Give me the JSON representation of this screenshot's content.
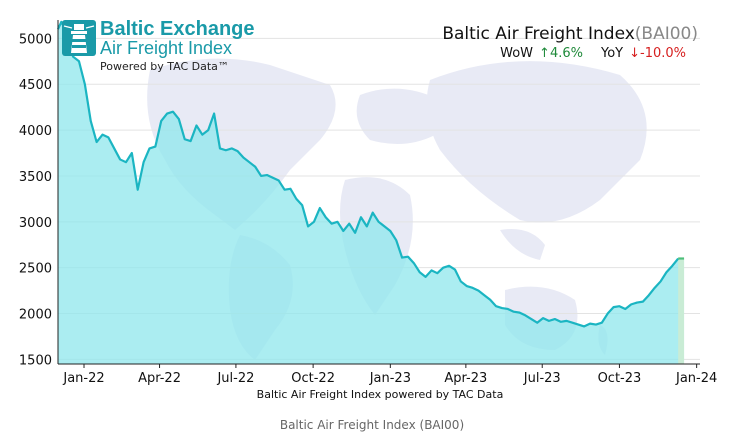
{
  "logo": {
    "title": "Baltic Exchange",
    "subtitle": "Air Freight Index",
    "powered": "Powered by TAC Data™"
  },
  "header": {
    "title": "Baltic Air Freight Index",
    "code": "(BAI00)",
    "wow_label": "WoW",
    "wow_arrow": "↑",
    "wow_value": "4.6%",
    "yoy_label": "YoY",
    "yoy_arrow": "↓",
    "yoy_value": "-10.0%"
  },
  "caption": "Baltic Air Freight Index (BAI00)",
  "colors": {
    "line": "#1bb5c2",
    "fill": "#8fe7ec",
    "last_fill": "#c9ecd5",
    "last_line": "#4fbf7a",
    "up": "#1f8a3a",
    "down": "#d61f1f",
    "logo": "#1a9aa8",
    "grid": "#e3e3e3",
    "map": "#e6e8f4"
  },
  "chart_data": {
    "type": "area",
    "title": "Baltic Air Freight Index(BAI00)",
    "xlabel": "Baltic Air Freight Index powered by TAC Data",
    "ylabel": "",
    "x_ticks": [
      "Jan-22",
      "Apr-22",
      "Jul-22",
      "Oct-22",
      "Jan-23",
      "Apr-23",
      "Jul-23",
      "Oct-23",
      "Jan-24"
    ],
    "y_ticks": [
      1500,
      2000,
      2500,
      3000,
      3500,
      4000,
      4500,
      5000
    ],
    "xlim": [
      "2021-12-01",
      "2024-01-05"
    ],
    "ylim": [
      1450,
      5200
    ],
    "grid": true,
    "legend": "none",
    "series": [
      {
        "x": [
          "2021-12-01",
          "2021-12-05",
          "2021-12-12",
          "2021-12-19",
          "2021-12-26",
          "2022-01-02",
          "2022-01-09",
          "2022-01-16",
          "2022-01-23",
          "2022-01-30",
          "2022-02-06",
          "2022-02-13",
          "2022-02-20",
          "2022-02-27",
          "2022-03-06",
          "2022-03-13",
          "2022-03-20",
          "2022-03-27",
          "2022-04-03",
          "2022-04-10",
          "2022-04-17",
          "2022-04-24",
          "2022-05-01",
          "2022-05-08",
          "2022-05-15",
          "2022-05-22",
          "2022-05-29",
          "2022-06-05",
          "2022-06-12",
          "2022-06-19",
          "2022-06-26",
          "2022-07-03",
          "2022-07-10",
          "2022-07-17",
          "2022-07-24",
          "2022-07-31",
          "2022-08-07",
          "2022-08-14",
          "2022-08-21",
          "2022-08-28",
          "2022-09-04",
          "2022-09-11",
          "2022-09-18",
          "2022-09-25",
          "2022-10-02",
          "2022-10-09",
          "2022-10-16",
          "2022-10-23",
          "2022-10-30",
          "2022-11-06",
          "2022-11-13",
          "2022-11-20",
          "2022-11-27",
          "2022-12-04",
          "2022-12-11",
          "2022-12-18",
          "2022-12-25",
          "2023-01-01",
          "2023-01-08",
          "2023-01-15",
          "2023-01-22",
          "2023-01-29",
          "2023-02-05",
          "2023-02-12",
          "2023-02-19",
          "2023-02-26",
          "2023-03-05",
          "2023-03-12",
          "2023-03-19",
          "2023-03-26",
          "2023-04-02",
          "2023-04-09",
          "2023-04-16",
          "2023-04-23",
          "2023-04-30",
          "2023-05-07",
          "2023-05-14",
          "2023-05-21",
          "2023-05-28",
          "2023-06-04",
          "2023-06-11",
          "2023-06-18",
          "2023-06-25",
          "2023-07-02",
          "2023-07-09",
          "2023-07-16",
          "2023-07-23",
          "2023-07-30",
          "2023-08-06",
          "2023-08-13",
          "2023-08-20",
          "2023-08-27",
          "2023-09-03",
          "2023-09-10",
          "2023-09-17",
          "2023-09-24",
          "2023-10-01",
          "2023-10-08",
          "2023-10-15",
          "2023-10-22",
          "2023-10-29",
          "2023-11-05",
          "2023-11-12",
          "2023-11-19",
          "2023-11-26",
          "2023-12-03",
          "2023-12-10",
          "2023-12-17"
        ],
        "values": [
          5100,
          5180,
          5050,
          4800,
          4750,
          4500,
          4100,
          3870,
          3950,
          3920,
          3800,
          3680,
          3650,
          3750,
          3350,
          3650,
          3800,
          3820,
          4100,
          4180,
          4200,
          4120,
          3900,
          3880,
          4050,
          3950,
          4000,
          4180,
          3800,
          3780,
          3800,
          3770,
          3700,
          3650,
          3600,
          3500,
          3510,
          3480,
          3450,
          3350,
          3360,
          3250,
          3180,
          2950,
          3000,
          3150,
          3050,
          2980,
          3000,
          2900,
          2980,
          2880,
          3050,
          2950,
          3100,
          3000,
          2950,
          2900,
          2800,
          2610,
          2620,
          2550,
          2450,
          2400,
          2470,
          2440,
          2500,
          2520,
          2480,
          2350,
          2300,
          2280,
          2250,
          2200,
          2150,
          2080,
          2060,
          2050,
          2020,
          2010,
          1980,
          1940,
          1900,
          1950,
          1920,
          1940,
          1910,
          1920,
          1900,
          1880,
          1860,
          1890,
          1880,
          1900,
          2000,
          2070,
          2080,
          2050,
          2100,
          2120,
          2130,
          2200,
          2280,
          2350,
          2450,
          2520,
          2600,
          2600
        ]
      }
    ]
  }
}
